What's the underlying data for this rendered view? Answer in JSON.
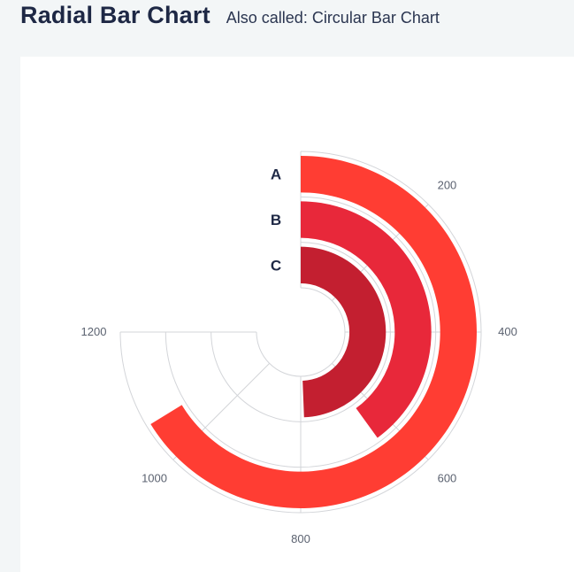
{
  "header": {
    "title": "Radial Bar Chart",
    "subtitle": "Also called: Circular Bar Chart"
  },
  "chart_data": {
    "type": "radial-bar",
    "categories": [
      "A",
      "B",
      "C"
    ],
    "values": [
      1060,
      640,
      790
    ],
    "axis_ticks": [
      200,
      400,
      600,
      800,
      1000,
      1200
    ],
    "axis_range": [
      0,
      1200
    ],
    "colors": [
      "#ff3d33",
      "#e8283a",
      "#c31f30"
    ],
    "grid": true
  }
}
